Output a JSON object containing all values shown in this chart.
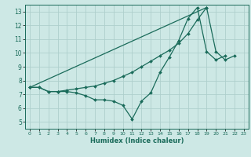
{
  "xlabel": "Humidex (Indice chaleur)",
  "ylabel": "",
  "xlim": [
    -0.5,
    23.5
  ],
  "ylim": [
    4.5,
    13.5
  ],
  "yticks": [
    5,
    6,
    7,
    8,
    9,
    10,
    11,
    12,
    13
  ],
  "xticks": [
    0,
    1,
    2,
    3,
    4,
    5,
    6,
    7,
    8,
    9,
    10,
    11,
    12,
    13,
    14,
    15,
    16,
    17,
    18,
    19,
    20,
    21,
    22,
    23
  ],
  "background_color": "#cde8e5",
  "grid_color": "#aecfcc",
  "line_color": "#1a6b5a",
  "lines": [
    {
      "x": [
        0,
        1,
        2,
        3,
        4,
        5,
        6,
        7,
        8,
        9,
        10,
        11,
        12,
        13,
        14,
        15,
        16,
        17,
        18,
        19,
        20,
        21
      ],
      "y": [
        7.5,
        7.5,
        7.2,
        7.2,
        7.2,
        7.1,
        6.9,
        6.6,
        6.6,
        6.5,
        6.2,
        5.2,
        6.5,
        7.1,
        8.6,
        9.7,
        10.9,
        12.5,
        13.3,
        10.1,
        9.5,
        9.8
      ]
    },
    {
      "x": [
        0,
        1,
        2,
        3,
        4,
        5,
        6,
        7,
        8,
        9,
        10,
        11,
        12,
        13,
        14,
        15,
        16,
        17,
        18,
        19
      ],
      "y": [
        7.5,
        7.5,
        7.2,
        7.2,
        7.3,
        7.4,
        7.5,
        7.6,
        7.8,
        8.0,
        8.3,
        8.6,
        9.0,
        9.4,
        9.8,
        10.2,
        10.7,
        11.4,
        12.4,
        13.3
      ]
    },
    {
      "x": [
        0,
        19,
        20,
        21,
        22
      ],
      "y": [
        7.5,
        13.3,
        10.1,
        9.5,
        9.8
      ]
    }
  ]
}
